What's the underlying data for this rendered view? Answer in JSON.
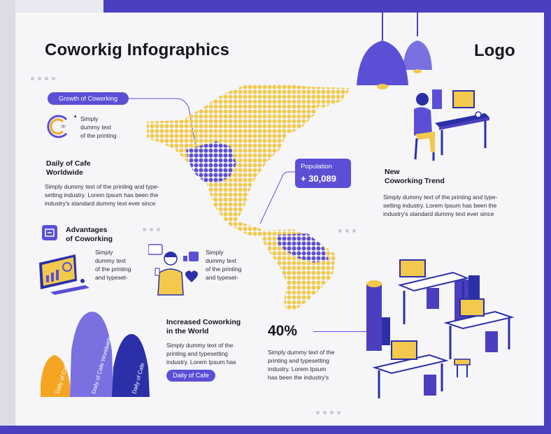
{
  "header": {
    "title": "Coworkig Infographics",
    "logo": "Logo"
  },
  "growth": {
    "pill": "Growth of Coworking",
    "gauge_value": "75°",
    "bullet_text": [
      "Simply",
      "dummy text",
      "of the printing"
    ]
  },
  "cafe": {
    "heading": [
      "Daily of Cafe",
      "Worldwide"
    ],
    "body": [
      "Simply dummy text of the printing and type-",
      "setting industry. Lorem Ipsum has been the",
      "industry's standard dummy text ever since"
    ]
  },
  "advantages": {
    "heading": [
      "Advantages",
      "of Coworking"
    ],
    "left_text": [
      "Simply",
      "dummy text",
      "of the printing",
      "and typeset-"
    ],
    "right_text": [
      "Simply",
      "dummy text",
      "of the printing",
      "and typeset-"
    ]
  },
  "population": {
    "label": "Population",
    "value": "+ 30,089"
  },
  "trend": {
    "heading": [
      "New",
      "Coworking Trend"
    ],
    "body": [
      "Simply dummy text of the printing and type-",
      "setting industry. Lorem Ipsum has been the",
      "industry's standard dummy text ever since"
    ]
  },
  "increased": {
    "heading": [
      "Increased Coworking",
      "in the World"
    ],
    "body": [
      "Simply dummy text of the",
      "printing and typesetting",
      "industry. Lorem Ipsum has"
    ],
    "pill": "Daily of Cafe"
  },
  "stat": {
    "value": "40%",
    "body": [
      "Simply dummy text of the",
      "printing and typesetting",
      "industry. Lorem Ipsum",
      "has been the industry's"
    ]
  },
  "peaks": {
    "labels": [
      "Daily of Cafe",
      "Daily of Cafe Worldwide",
      "Daily of Cafe"
    ]
  },
  "colors": {
    "purple": "#5b4fd6",
    "yellow": "#f2c94c",
    "orange": "#f4a623",
    "navy": "#2b2fa8",
    "accent_light": "#b7b0ef"
  },
  "icons": [
    "gauge-icon",
    "hex-map-icon",
    "lamp-icon",
    "desk-worker-icon",
    "monitor-chart-icon",
    "person-thumbs-icon",
    "office-desks-icon",
    "advantages-icon"
  ]
}
